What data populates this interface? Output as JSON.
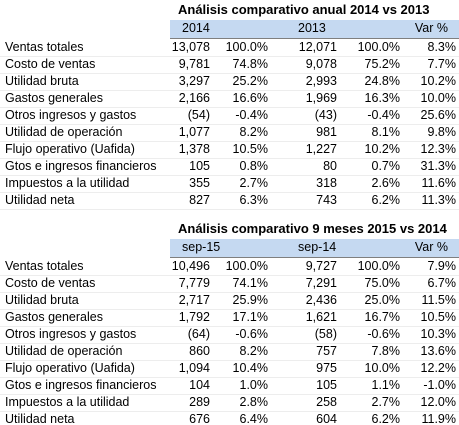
{
  "tables": [
    {
      "title": "Análisis comparativo anual 2014 vs 2013",
      "header": [
        "2014",
        "2013",
        "Var %"
      ],
      "rows": [
        [
          "Ventas totales",
          "13,078",
          "100.0%",
          "12,071",
          "100.0%",
          "8.3%"
        ],
        [
          "Costo de ventas",
          "9,781",
          "74.8%",
          "9,078",
          "75.2%",
          "7.7%"
        ],
        [
          "Utilidad bruta",
          "3,297",
          "25.2%",
          "2,993",
          "24.8%",
          "10.2%"
        ],
        [
          "Gastos generales",
          "2,166",
          "16.6%",
          "1,969",
          "16.3%",
          "10.0%"
        ],
        [
          "Otros ingresos y gastos",
          "(54)",
          "-0.4%",
          "(43)",
          "-0.4%",
          "25.6%"
        ],
        [
          "Utilidad de operación",
          "1,077",
          "8.2%",
          "981",
          "8.1%",
          "9.8%"
        ],
        [
          "Flujo operativo (Uafida)",
          "1,378",
          "10.5%",
          "1,227",
          "10.2%",
          "12.3%"
        ],
        [
          "Gtos e ingresos financieros",
          "105",
          "0.8%",
          "80",
          "0.7%",
          "31.3%"
        ],
        [
          "Impuestos a la utilidad",
          "355",
          "2.7%",
          "318",
          "2.6%",
          "11.6%"
        ],
        [
          "Utilidad neta",
          "827",
          "6.3%",
          "743",
          "6.2%",
          "11.3%"
        ]
      ]
    },
    {
      "title": "Análisis comparativo 9 meses 2015 vs 2014",
      "header": [
        "sep-15",
        "sep-14",
        "Var %"
      ],
      "rows": [
        [
          "Ventas totales",
          "10,496",
          "100.0%",
          "9,727",
          "100.0%",
          "7.9%"
        ],
        [
          "Costo de ventas",
          "7,779",
          "74.1%",
          "7,291",
          "75.0%",
          "6.7%"
        ],
        [
          "Utilidad bruta",
          "2,717",
          "25.9%",
          "2,436",
          "25.0%",
          "11.5%"
        ],
        [
          "Gastos generales",
          "1,792",
          "17.1%",
          "1,621",
          "16.7%",
          "10.5%"
        ],
        [
          "Otros ingresos y gastos",
          "(64)",
          "-0.6%",
          "(58)",
          "-0.6%",
          "10.3%"
        ],
        [
          "Utilidad de operación",
          "860",
          "8.2%",
          "757",
          "7.8%",
          "13.6%"
        ],
        [
          "Flujo operativo (Uafida)",
          "1,094",
          "10.4%",
          "975",
          "10.0%",
          "12.2%"
        ],
        [
          "Gtos e ingresos financieros",
          "104",
          "1.0%",
          "105",
          "1.1%",
          "-1.0%"
        ],
        [
          "Impuestos a la utilidad",
          "289",
          "2.8%",
          "258",
          "2.7%",
          "12.0%"
        ],
        [
          "Utilidad neta",
          "676",
          "6.4%",
          "604",
          "6.2%",
          "11.9%"
        ]
      ]
    }
  ]
}
